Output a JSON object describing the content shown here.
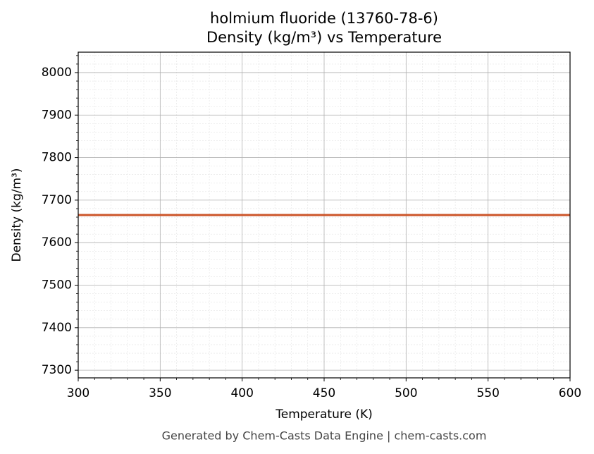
{
  "chart_data": {
    "type": "line",
    "title": "holmium fluoride (13760-78-6)",
    "subtitle": "Density (kg/m³) vs Temperature",
    "x_label": "Temperature (K)",
    "y_label": "Density (kg/m³)",
    "x": [
      300,
      600
    ],
    "series": [
      {
        "name": "Density",
        "color": "#cc5529",
        "values": [
          7665,
          7665
        ]
      }
    ],
    "xlim": [
      300,
      600
    ],
    "xticks": [
      300,
      350,
      400,
      450,
      500,
      550,
      600
    ],
    "ylim": [
      7282,
      8048
    ],
    "yticks": [
      7300,
      7400,
      7500,
      7600,
      7700,
      7800,
      7900,
      8000
    ],
    "grid": true,
    "footer": "Generated by Chem-Casts Data Engine | chem-casts.com"
  }
}
